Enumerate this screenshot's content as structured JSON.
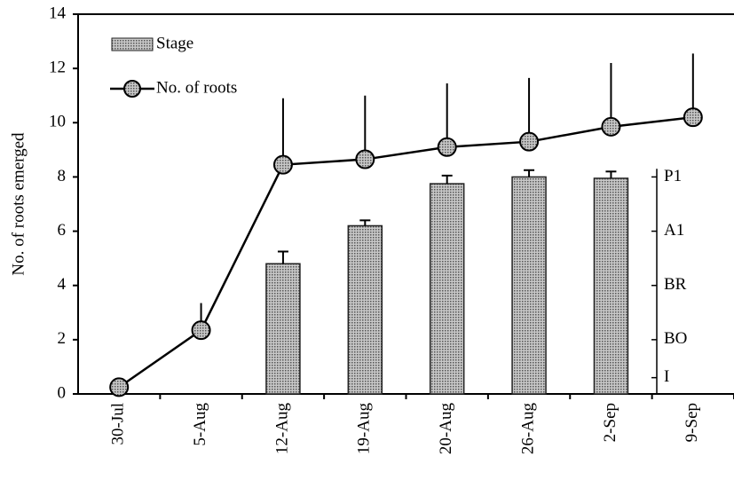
{
  "chart_data": {
    "type": "bar-line",
    "y_label": "No. of roots emerged",
    "categories": [
      "30-Jul",
      "5-Aug",
      "12-Aug",
      "19-Aug",
      "20-Aug",
      "26-Aug",
      "2-Sep",
      "9-Sep"
    ],
    "series": [
      {
        "name": "Stage",
        "type": "bar",
        "color": "#8c8c8c",
        "values": [
          null,
          null,
          4.8,
          6.2,
          7.75,
          8.0,
          7.95,
          null
        ],
        "errors": [
          null,
          null,
          0.45,
          0.2,
          0.3,
          0.25,
          0.25,
          null
        ]
      },
      {
        "name": "No. of roots",
        "type": "line",
        "color": "#000000",
        "values": [
          0.25,
          2.35,
          8.45,
          8.65,
          9.1,
          9.3,
          9.85,
          10.2
        ],
        "errors": [
          null,
          1.0,
          2.45,
          2.35,
          2.35,
          2.35,
          2.35,
          2.35
        ]
      }
    ],
    "ylim": [
      0,
      14
    ],
    "yticks": [
      0,
      2,
      4,
      6,
      8,
      10,
      12,
      14
    ],
    "stage_ticks": [
      {
        "value": 8,
        "label": "P1"
      },
      {
        "value": 6,
        "label": "A1"
      },
      {
        "value": 4,
        "label": "BR"
      },
      {
        "value": 2,
        "label": "BO"
      },
      {
        "value": 0.6,
        "label": "I"
      }
    ]
  }
}
